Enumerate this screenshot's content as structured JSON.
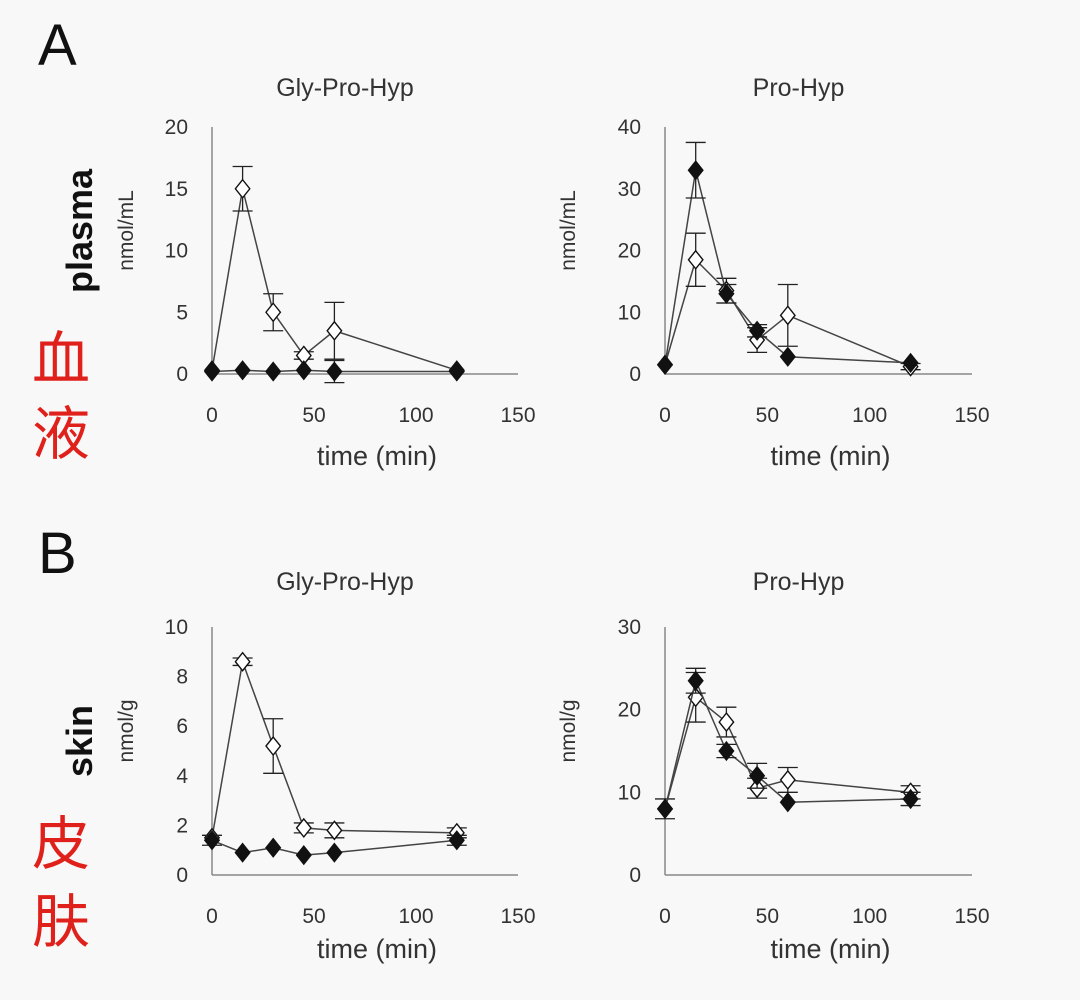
{
  "panels": {
    "A": {
      "letter": "A",
      "row_label": "plasma",
      "cjk": [
        "血",
        "液"
      ]
    },
    "B": {
      "letter": "B",
      "row_label": "skin",
      "cjk": [
        "皮",
        "肤"
      ]
    }
  },
  "colors": {
    "filled_marker": "#111111",
    "open_marker": "#ffffff",
    "line": "#444444",
    "cjk_label": "#e0201b"
  },
  "chart_data": [
    {
      "type": "line",
      "title": "Gly-Pro-Hyp",
      "xlabel": "time (min)",
      "ylabel": "nmol/mL",
      "xlim": [
        0,
        150
      ],
      "ylim": [
        0,
        20
      ],
      "xticks": [
        0,
        50,
        100,
        150
      ],
      "yticks": [
        0,
        5,
        10,
        15,
        20
      ],
      "series": [
        {
          "marker": "open-diamond",
          "x": [
            0,
            15,
            30,
            45,
            60,
            120
          ],
          "y": [
            0.3,
            15.0,
            5.0,
            1.5,
            3.5,
            0.3
          ],
          "err": [
            0,
            1.8,
            1.5,
            0.3,
            2.3,
            0
          ]
        },
        {
          "marker": "filled-diamond",
          "x": [
            0,
            15,
            30,
            45,
            60,
            120
          ],
          "y": [
            0.2,
            0.3,
            0.2,
            0.3,
            0.2,
            0.2
          ],
          "err": [
            0,
            0,
            0,
            0,
            0.9,
            0
          ]
        }
      ]
    },
    {
      "type": "line",
      "title": "Pro-Hyp",
      "xlabel": "time (min)",
      "ylabel": "nmol/mL",
      "xlim": [
        0,
        150
      ],
      "ylim": [
        0,
        40
      ],
      "xticks": [
        0,
        50,
        100,
        150
      ],
      "yticks": [
        0,
        10,
        20,
        30,
        40
      ],
      "series": [
        {
          "marker": "open-diamond",
          "x": [
            0,
            15,
            30,
            45,
            60,
            120
          ],
          "y": [
            1.5,
            18.5,
            13.5,
            5.5,
            9.5,
            1.2
          ],
          "err": [
            0,
            4.3,
            2.0,
            2.0,
            5.0,
            0.5
          ]
        },
        {
          "marker": "filled-diamond",
          "x": [
            0,
            15,
            30,
            45,
            60,
            120
          ],
          "y": [
            1.5,
            33.0,
            13.0,
            7.0,
            2.8,
            1.8
          ],
          "err": [
            0,
            4.5,
            1.5,
            1.0,
            0,
            0
          ]
        }
      ]
    },
    {
      "type": "line",
      "title": "Gly-Pro-Hyp",
      "xlabel": "time (min)",
      "ylabel": "nmol/g",
      "xlim": [
        0,
        150
      ],
      "ylim": [
        0,
        10
      ],
      "xticks": [
        0,
        50,
        100,
        150
      ],
      "yticks": [
        0,
        2,
        4,
        6,
        8,
        10
      ],
      "series": [
        {
          "marker": "open-diamond",
          "x": [
            0,
            15,
            30,
            45,
            60,
            120
          ],
          "y": [
            1.5,
            8.6,
            5.2,
            1.9,
            1.8,
            1.7
          ],
          "err": [
            0,
            0.15,
            1.1,
            0.2,
            0.3,
            0.2
          ]
        },
        {
          "marker": "filled-diamond",
          "x": [
            0,
            15,
            30,
            45,
            60,
            120
          ],
          "y": [
            1.4,
            0.9,
            1.1,
            0.8,
            0.9,
            1.4
          ],
          "err": [
            0.2,
            0,
            0,
            0,
            0,
            0.2
          ]
        }
      ]
    },
    {
      "type": "line",
      "title": "Pro-Hyp",
      "xlabel": "time (min)",
      "ylabel": "nmol/g",
      "xlim": [
        0,
        150
      ],
      "ylim": [
        0,
        30
      ],
      "xticks": [
        0,
        50,
        100,
        150
      ],
      "yticks": [
        0,
        10,
        20,
        30
      ],
      "series": [
        {
          "marker": "open-diamond",
          "x": [
            0,
            15,
            30,
            45,
            60,
            120
          ],
          "y": [
            8.0,
            21.5,
            18.5,
            10.5,
            11.5,
            10.0
          ],
          "err": [
            1.2,
            3.0,
            1.8,
            1.2,
            1.5,
            0.8
          ]
        },
        {
          "marker": "filled-diamond",
          "x": [
            0,
            15,
            30,
            45,
            60,
            120
          ],
          "y": [
            8.0,
            23.5,
            15.0,
            12.0,
            8.8,
            9.2
          ],
          "err": [
            0,
            1.5,
            0.8,
            1.5,
            0,
            0.8
          ]
        }
      ]
    }
  ]
}
